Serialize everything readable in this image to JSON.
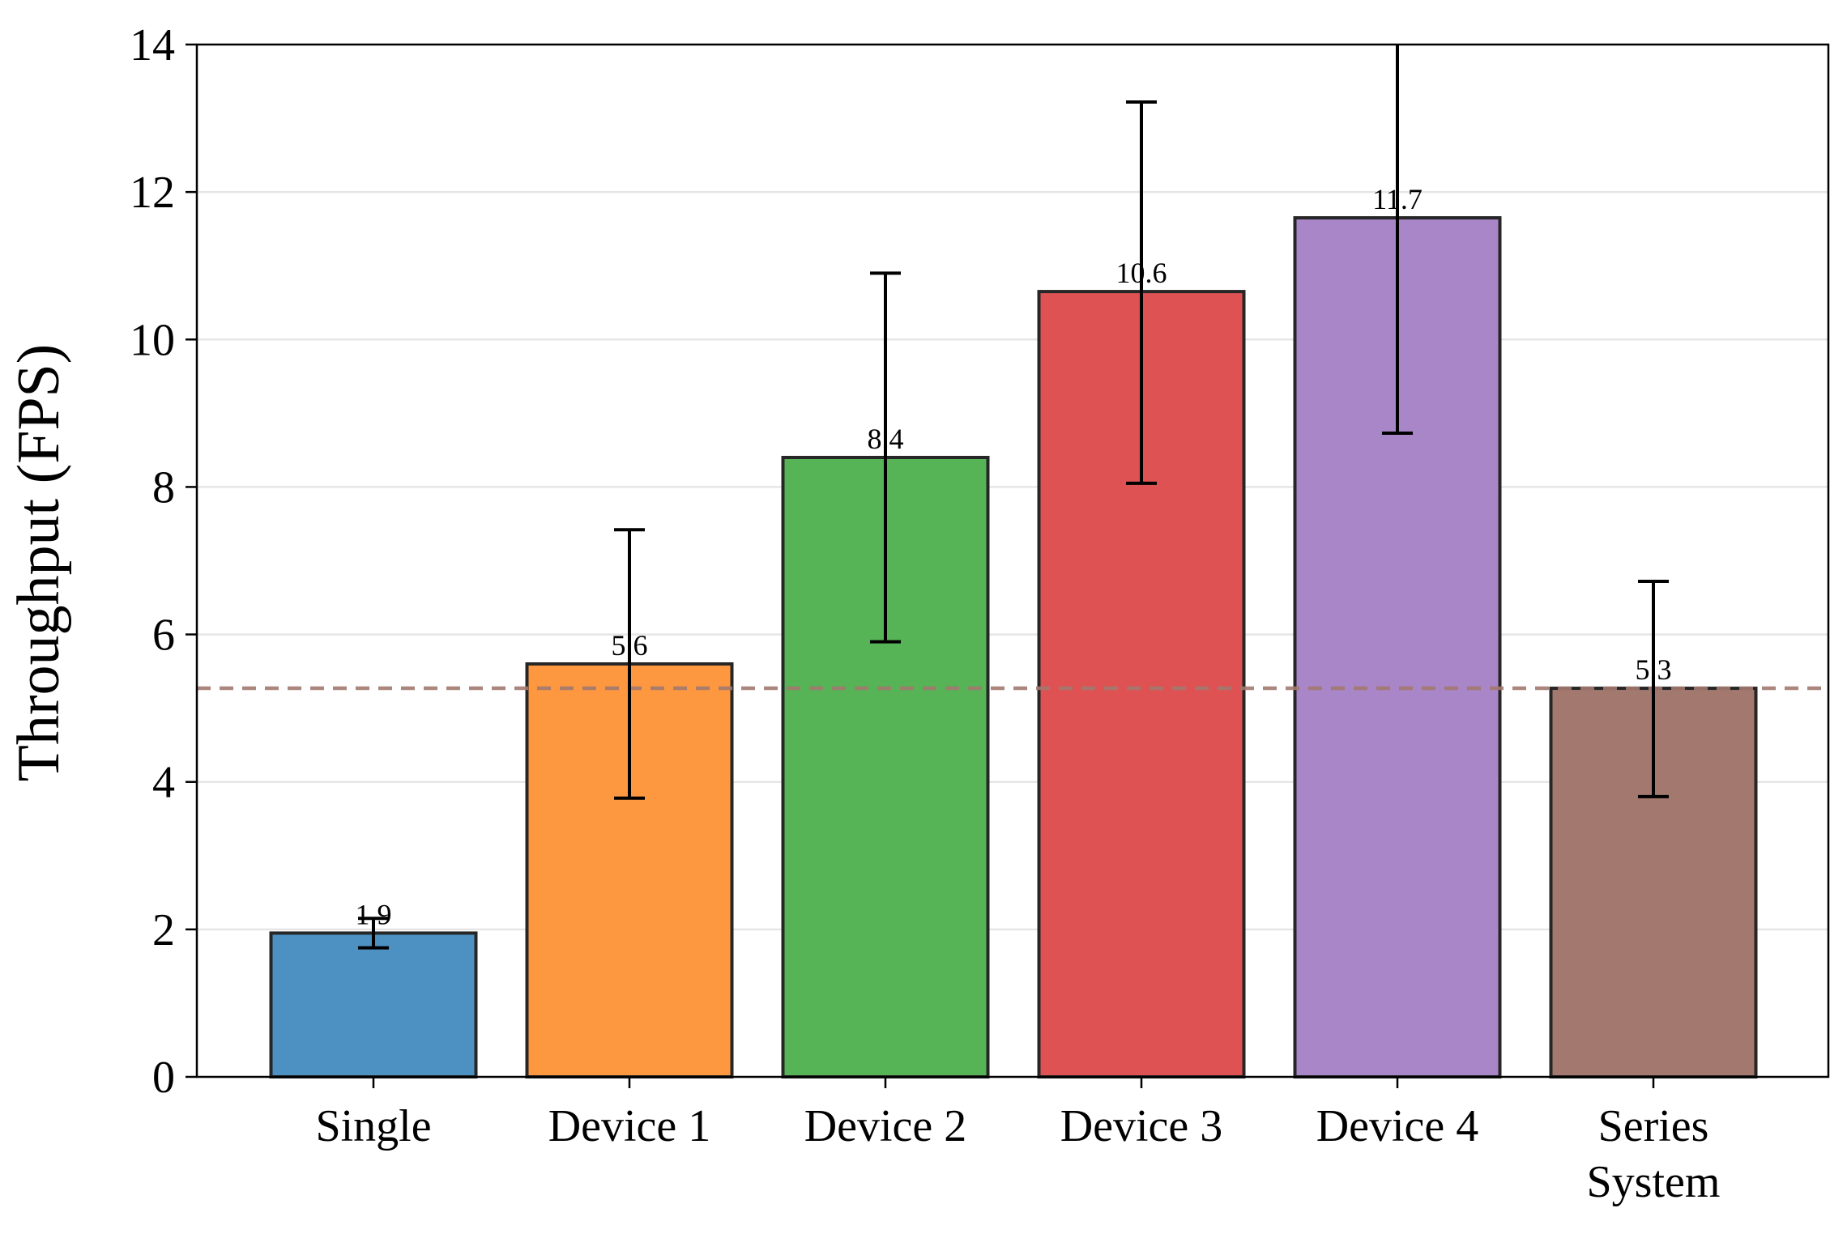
{
  "chart_data": {
    "type": "bar",
    "title": "",
    "xlabel": "",
    "ylabel": "Throughput (FPS)",
    "ylim": [
      0,
      14
    ],
    "yticks": [
      0,
      2,
      4,
      6,
      8,
      10,
      12,
      14
    ],
    "grid": "horizontal",
    "categories": [
      "Single",
      "Device 1",
      "Device 2",
      "Device 3",
      "Device 4",
      "Series System"
    ],
    "category_lines": [
      [
        "Single"
      ],
      [
        "Device 1"
      ],
      [
        "Device 2"
      ],
      [
        "Device 3"
      ],
      [
        "Device 4"
      ],
      [
        "Series",
        "System"
      ]
    ],
    "values": [
      1.95,
      5.6,
      8.4,
      10.65,
      11.65,
      5.27
    ],
    "value_labels": [
      "1.9",
      "5.6",
      "8.4",
      "10.6",
      "11.7",
      "5.3"
    ],
    "error_low": [
      1.75,
      3.78,
      5.9,
      8.05,
      8.73,
      3.8
    ],
    "error_high": [
      2.15,
      7.42,
      10.9,
      13.22,
      14.0,
      6.72
    ],
    "colors": [
      "#4c91c2",
      "#fe9840",
      "#56b356",
      "#de5253",
      "#a886c7",
      "#a3796f"
    ],
    "reference_line": {
      "value": 5.27,
      "style": "dashed",
      "color": "#a3796f"
    }
  }
}
